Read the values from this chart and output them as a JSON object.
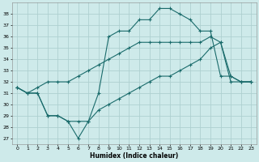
{
  "xlabel": "Humidex (Indice chaleur)",
  "bg_color": "#ceeaea",
  "grid_color": "#aed0d0",
  "line_color": "#1a6b6b",
  "xlim": [
    -0.5,
    23.5
  ],
  "ylim": [
    26.5,
    39.0
  ],
  "yticks": [
    27,
    28,
    29,
    30,
    31,
    32,
    33,
    34,
    35,
    36,
    37,
    38
  ],
  "xticks": [
    0,
    1,
    2,
    3,
    4,
    5,
    6,
    7,
    8,
    9,
    10,
    11,
    12,
    13,
    14,
    15,
    16,
    17,
    18,
    19,
    20,
    21,
    22,
    23
  ],
  "curve1_x": [
    0,
    1,
    2,
    3,
    4,
    5,
    6,
    7,
    8,
    9,
    10,
    11,
    12,
    13,
    14,
    15,
    16,
    17,
    18,
    19,
    20,
    21,
    22,
    23
  ],
  "curve1_y": [
    31.5,
    31.0,
    31.0,
    29.0,
    29.0,
    28.5,
    27.0,
    28.5,
    31.0,
    36.0,
    36.5,
    36.5,
    37.5,
    37.5,
    38.5,
    38.5,
    38.0,
    37.5,
    36.5,
    36.5,
    32.5,
    32.5,
    32.0,
    32.0
  ],
  "curve2_x": [
    0,
    1,
    2,
    3,
    4,
    5,
    6,
    7,
    8,
    9,
    10,
    11,
    12,
    13,
    14,
    15,
    16,
    17,
    18,
    19,
    20,
    21,
    22,
    23
  ],
  "curve2_y": [
    31.5,
    31.0,
    31.5,
    32.0,
    32.0,
    32.0,
    32.5,
    33.0,
    33.5,
    34.0,
    34.5,
    35.0,
    35.5,
    35.5,
    35.5,
    35.5,
    35.5,
    35.5,
    35.5,
    36.0,
    35.5,
    32.5,
    32.0,
    32.0
  ],
  "curve3_x": [
    0,
    1,
    2,
    3,
    4,
    5,
    6,
    7,
    8,
    9,
    10,
    11,
    12,
    13,
    14,
    15,
    16,
    17,
    18,
    19,
    20,
    21,
    22,
    23
  ],
  "curve3_y": [
    31.5,
    31.0,
    31.0,
    29.0,
    29.0,
    28.5,
    28.5,
    28.5,
    29.5,
    30.0,
    30.5,
    31.0,
    31.5,
    32.0,
    32.5,
    32.5,
    33.0,
    33.5,
    34.0,
    35.0,
    35.5,
    32.0,
    32.0,
    32.0
  ]
}
